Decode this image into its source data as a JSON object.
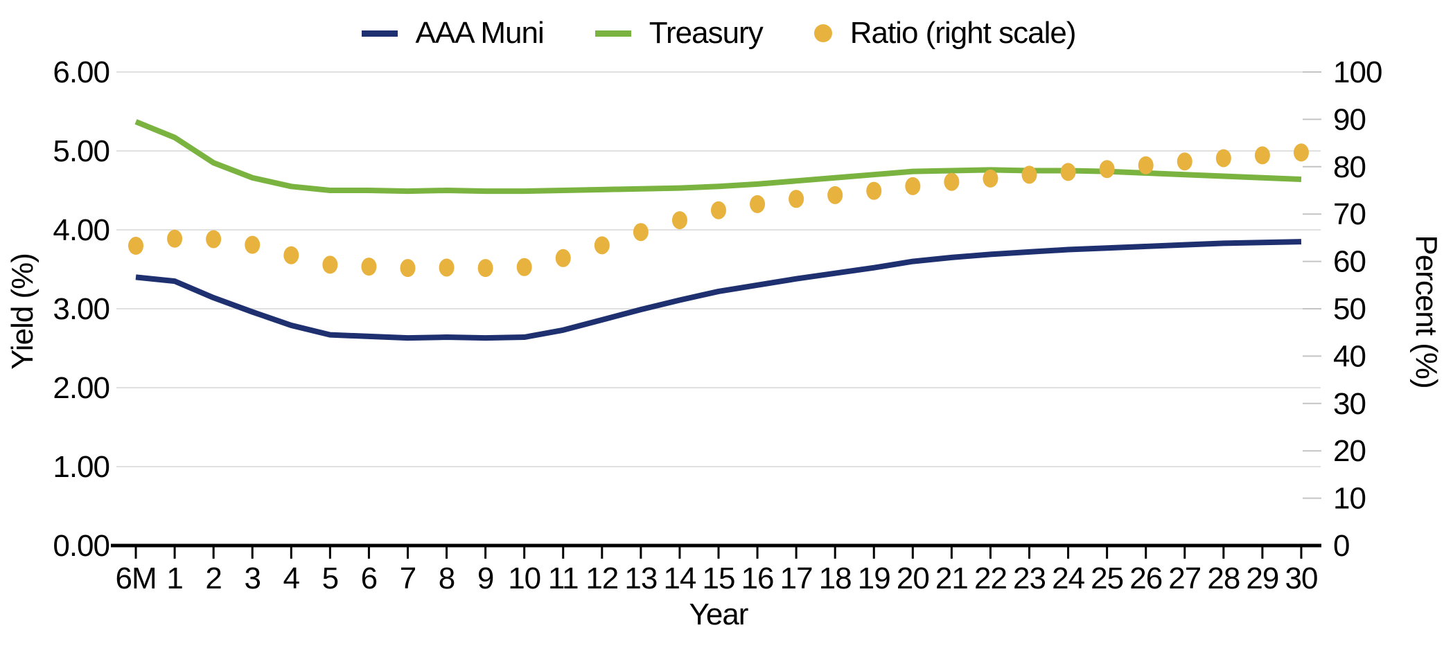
{
  "colors": {
    "navy": "#1e306f",
    "green": "#7ab33f",
    "gold": "#e7b23e",
    "grid": "#e0e0e0",
    "tick": "#c4c4c4",
    "axis": "#000000",
    "background": "#ffffff"
  },
  "legend": {
    "items": [
      {
        "label": "AAA Muni",
        "swatch": "line",
        "color_key": "navy"
      },
      {
        "label": "Treasury",
        "swatch": "line",
        "color_key": "green"
      },
      {
        "label": "Ratio (right scale)",
        "swatch": "dot",
        "color_key": "gold"
      }
    ]
  },
  "chart_data": {
    "type": "line",
    "title": "",
    "legend_position": "top",
    "grid": "horizontal",
    "categories": [
      "6M",
      "1",
      "2",
      "3",
      "4",
      "5",
      "6",
      "7",
      "8",
      "9",
      "10",
      "11",
      "12",
      "13",
      "14",
      "15",
      "16",
      "17",
      "18",
      "19",
      "20",
      "21",
      "22",
      "23",
      "24",
      "25",
      "26",
      "27",
      "28",
      "29",
      "30"
    ],
    "x_axis": {
      "title": "Year"
    },
    "left_axis": {
      "title": "Yield (%)",
      "min": 0,
      "max": 6,
      "ticks": [
        "0.00",
        "1.00",
        "2.00",
        "3.00",
        "4.00",
        "5.00",
        "6.00"
      ]
    },
    "right_axis": {
      "title": "Percent (%)",
      "min": 0,
      "max": 100,
      "ticks": [
        "0",
        "10",
        "20",
        "30",
        "40",
        "50",
        "60",
        "70",
        "80",
        "90",
        "100"
      ]
    },
    "series": [
      {
        "name": "AAA Muni",
        "type": "line",
        "axis": "left",
        "color_key": "navy",
        "values": [
          3.4,
          3.35,
          3.14,
          2.96,
          2.79,
          2.67,
          2.65,
          2.63,
          2.64,
          2.63,
          2.64,
          2.73,
          2.86,
          2.99,
          3.11,
          3.22,
          3.3,
          3.38,
          3.45,
          3.52,
          3.6,
          3.65,
          3.69,
          3.72,
          3.75,
          3.77,
          3.79,
          3.81,
          3.83,
          3.84,
          3.85
        ]
      },
      {
        "name": "Treasury",
        "type": "line",
        "axis": "left",
        "color_key": "green",
        "values": [
          5.37,
          5.17,
          4.85,
          4.66,
          4.55,
          4.5,
          4.5,
          4.49,
          4.5,
          4.49,
          4.49,
          4.5,
          4.51,
          4.52,
          4.53,
          4.55,
          4.58,
          4.62,
          4.66,
          4.7,
          4.74,
          4.75,
          4.76,
          4.75,
          4.75,
          4.74,
          4.72,
          4.7,
          4.68,
          4.66,
          4.64
        ]
      },
      {
        "name": "Ratio (right scale)",
        "type": "scatter",
        "axis": "right",
        "color_key": "gold",
        "values": [
          63.3,
          64.8,
          64.7,
          63.5,
          61.3,
          59.3,
          58.9,
          58.6,
          58.7,
          58.6,
          58.8,
          60.7,
          63.4,
          66.2,
          68.7,
          70.8,
          72.1,
          73.2,
          74.0,
          74.9,
          75.9,
          76.8,
          77.5,
          78.3,
          78.9,
          79.5,
          80.3,
          81.1,
          81.8,
          82.4,
          83.0
        ]
      }
    ]
  }
}
